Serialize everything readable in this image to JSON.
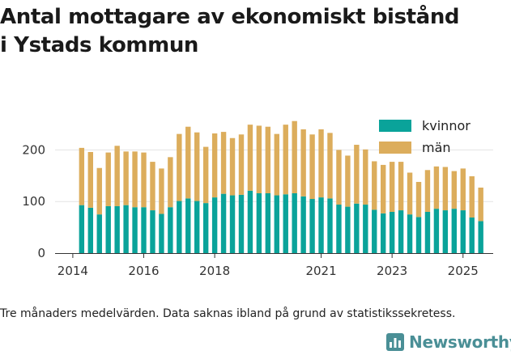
{
  "header": {
    "title_line1": "Antal mottagare av ekonomiskt bistånd",
    "title_line2": "i Ystads kommun"
  },
  "footer": {
    "caption": "Tre månaders medelvärden. Data saknas ibland på grund av statistikssekretess.",
    "brand": "Newsworthy",
    "brand_icon": "bar-chart-icon"
  },
  "colors": {
    "kvinnor": "#0aa39a",
    "man": "#dcad5c",
    "grid": "#e3e3e3",
    "axis_text": "#333333",
    "brand": "#4a8f96"
  },
  "chart_data": {
    "type": "bar",
    "stacked": true,
    "title": "Antal mottagare av ekonomiskt bistånd i Ystads kommun",
    "xlabel": "",
    "ylabel": "",
    "ylim": [
      0,
      290
    ],
    "xlim": [
      2013.5,
      2025.85
    ],
    "yticks": [
      0,
      100,
      200
    ],
    "xticks": [
      2014,
      2016,
      2018,
      2021,
      2023,
      2025
    ],
    "legend": {
      "position": "top-right"
    },
    "x": [
      2014.25,
      2014.5,
      2014.75,
      2015.0,
      2015.25,
      2015.5,
      2015.75,
      2016.0,
      2016.25,
      2016.5,
      2016.75,
      2017.0,
      2017.25,
      2017.5,
      2017.75,
      2018.0,
      2018.25,
      2018.5,
      2018.75,
      2019.0,
      2019.25,
      2019.5,
      2019.75,
      2020.0,
      2020.25,
      2020.5,
      2020.75,
      2021.0,
      2021.25,
      2021.5,
      2021.75,
      2022.0,
      2022.25,
      2022.5,
      2022.75,
      2023.0,
      2023.25,
      2023.5,
      2023.75,
      2024.0,
      2024.25,
      2024.5,
      2024.75,
      2025.0,
      2025.25,
      2025.5
    ],
    "series": [
      {
        "name": "kvinnor",
        "values": [
          93,
          88,
          75,
          91,
          91,
          93,
          89,
          89,
          83,
          76,
          89,
          101,
          106,
          101,
          97,
          108,
          115,
          112,
          113,
          121,
          116,
          116,
          112,
          114,
          116,
          110,
          105,
          108,
          106,
          94,
          90,
          96,
          94,
          84,
          77,
          80,
          83,
          75,
          70,
          80,
          86,
          83,
          86,
          83,
          69,
          62
        ]
      },
      {
        "name": "män",
        "values": [
          111,
          108,
          90,
          104,
          117,
          104,
          108,
          106,
          94,
          88,
          97,
          130,
          139,
          133,
          109,
          124,
          120,
          111,
          117,
          128,
          131,
          129,
          119,
          135,
          140,
          130,
          125,
          132,
          127,
          106,
          99,
          114,
          107,
          94,
          94,
          97,
          94,
          81,
          68,
          81,
          82,
          84,
          73,
          81,
          80,
          65
        ]
      }
    ]
  }
}
